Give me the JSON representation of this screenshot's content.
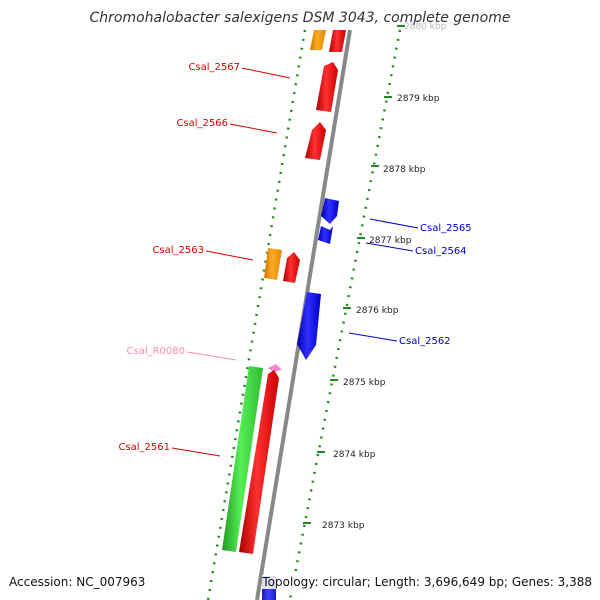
{
  "title": "Chromohalobacter salexigens DSM 3043, complete genome",
  "footer": {
    "accession": "Accession: NC_007963",
    "summary": "Topology: circular; Length: 3,696,649 bp; Genes: 3,388"
  },
  "scale_labels": [
    {
      "text": "2880 kbp",
      "faded": true
    },
    {
      "text": "2879 kbp"
    },
    {
      "text": "2878 kbp"
    },
    {
      "text": "2877 kbp"
    },
    {
      "text": "2876 kbp"
    },
    {
      "text": "2875 kbp"
    },
    {
      "text": "2874 kbp"
    },
    {
      "text": "2873 kbp"
    }
  ],
  "gene_labels": [
    {
      "text": "Csal_2567",
      "color": "#dd0000"
    },
    {
      "text": "Csal_2566",
      "color": "#dd0000"
    },
    {
      "text": "Csal_2565",
      "color": "#0000cc"
    },
    {
      "text": "Csal_2564",
      "color": "#0000cc"
    },
    {
      "text": "Csal_2563",
      "color": "#dd0000"
    },
    {
      "text": "Csal_2562",
      "color": "#0000cc"
    },
    {
      "text": "Csal_R0080",
      "color": "#ff88bb"
    },
    {
      "text": "Csal_2561",
      "color": "#dd0000"
    }
  ],
  "colors": {
    "forward_cds": "#ff0000",
    "reverse_cds": "#0000ff",
    "gene": "#ff9900",
    "rrna": "#33cc33",
    "trna": "#ff88cc",
    "backbone": "#888888",
    "dots": "#228822"
  }
}
